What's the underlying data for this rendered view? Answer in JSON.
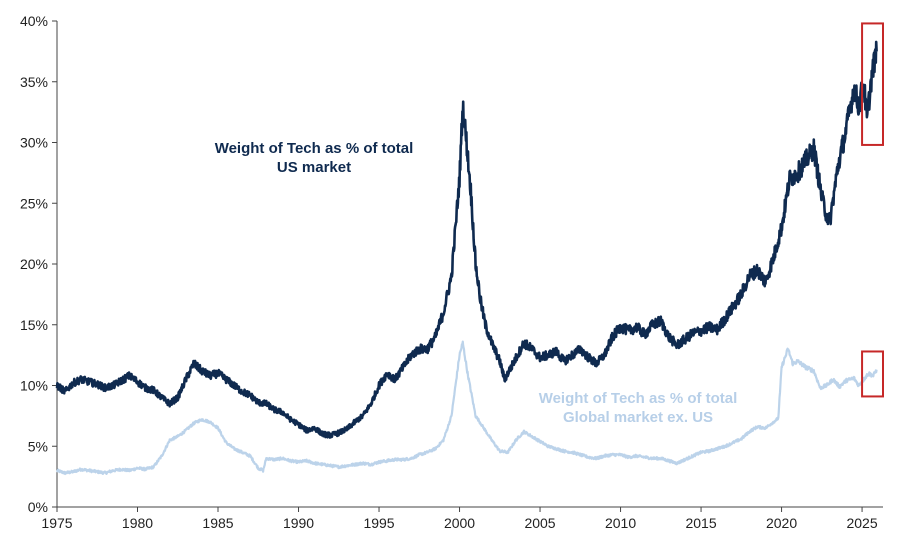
{
  "colors": {
    "us_series": "#0f2a4f",
    "global_series": "#bcd3ea",
    "us_label": "#0f2a4f",
    "global_label": "#b7cfe8",
    "highlight_box": "#c62828",
    "axis": "#444444"
  },
  "chart_data": {
    "type": "line",
    "title": "",
    "xlabel": "",
    "ylabel": "",
    "xlim": [
      1975,
      2026.3
    ],
    "ylim": [
      0,
      40
    ],
    "x_ticks": [
      "1975",
      "1980",
      "1985",
      "1990",
      "1995",
      "2000",
      "2005",
      "2010",
      "2015",
      "2020",
      "2025"
    ],
    "y_ticks": [
      "0%",
      "5%",
      "10%",
      "15%",
      "20%",
      "25%",
      "30%",
      "35%",
      "40%"
    ],
    "grid": false,
    "legend": "none",
    "annotations": [
      {
        "id": "us",
        "lines": [
          "Weight of Tech as % of total",
          "US market"
        ]
      },
      {
        "id": "global",
        "lines": [
          "Weight of Tech as % of total",
          "Global market ex. US"
        ]
      }
    ],
    "highlights": [
      {
        "series": "us",
        "x": [
          2025.0,
          2026.3
        ],
        "y": [
          29.8,
          39.8
        ]
      },
      {
        "series": "global",
        "x": [
          2025.0,
          2026.3
        ],
        "y": [
          9.1,
          12.8
        ]
      }
    ],
    "series": [
      {
        "id": "us",
        "name": "Weight of Tech as % of total US market",
        "points": [
          [
            1975.0,
            10.0
          ],
          [
            1975.5,
            9.5
          ],
          [
            1976.0,
            10.2
          ],
          [
            1976.5,
            10.5
          ],
          [
            1977.0,
            10.3
          ],
          [
            1977.5,
            10.1
          ],
          [
            1978.0,
            9.8
          ],
          [
            1978.5,
            10.0
          ],
          [
            1979.0,
            10.4
          ],
          [
            1979.5,
            10.8
          ],
          [
            1980.0,
            10.3
          ],
          [
            1980.5,
            9.8
          ],
          [
            1981.0,
            9.6
          ],
          [
            1981.5,
            9.0
          ],
          [
            1982.0,
            8.5
          ],
          [
            1982.5,
            9.0
          ],
          [
            1983.0,
            10.5
          ],
          [
            1983.5,
            11.8
          ],
          [
            1984.0,
            11.2
          ],
          [
            1984.5,
            10.8
          ],
          [
            1985.0,
            11.0
          ],
          [
            1985.5,
            10.5
          ],
          [
            1986.0,
            10.0
          ],
          [
            1986.5,
            9.5
          ],
          [
            1987.0,
            9.2
          ],
          [
            1987.5,
            8.6
          ],
          [
            1988.0,
            8.5
          ],
          [
            1988.5,
            8.0
          ],
          [
            1989.0,
            7.8
          ],
          [
            1989.5,
            7.2
          ],
          [
            1990.0,
            6.8
          ],
          [
            1990.5,
            6.3
          ],
          [
            1991.0,
            6.5
          ],
          [
            1991.5,
            6.0
          ],
          [
            1992.0,
            5.9
          ],
          [
            1992.5,
            6.1
          ],
          [
            1993.0,
            6.4
          ],
          [
            1993.5,
            7.0
          ],
          [
            1994.0,
            7.5
          ],
          [
            1994.5,
            8.5
          ],
          [
            1995.0,
            10.0
          ],
          [
            1995.5,
            11.0
          ],
          [
            1996.0,
            10.5
          ],
          [
            1996.5,
            11.5
          ],
          [
            1997.0,
            12.5
          ],
          [
            1997.5,
            13.0
          ],
          [
            1998.0,
            13.0
          ],
          [
            1998.5,
            14.0
          ],
          [
            1999.0,
            16.0
          ],
          [
            1999.5,
            19.0
          ],
          [
            2000.0,
            27.0
          ],
          [
            2000.2,
            33.0
          ],
          [
            2000.4,
            30.5
          ],
          [
            2000.7,
            26.0
          ],
          [
            2001.0,
            20.0
          ],
          [
            2001.3,
            17.0
          ],
          [
            2001.6,
            15.0
          ],
          [
            2002.0,
            13.5
          ],
          [
            2002.5,
            12.0
          ],
          [
            2002.8,
            10.5
          ],
          [
            2003.2,
            11.5
          ],
          [
            2003.6,
            12.5
          ],
          [
            2004.0,
            13.5
          ],
          [
            2004.5,
            13.0
          ],
          [
            2005.0,
            12.3
          ],
          [
            2005.5,
            12.5
          ],
          [
            2006.0,
            12.8
          ],
          [
            2006.5,
            12.0
          ],
          [
            2007.0,
            12.5
          ],
          [
            2007.5,
            13.0
          ],
          [
            2008.0,
            12.3
          ],
          [
            2008.5,
            11.8
          ],
          [
            2009.0,
            12.5
          ],
          [
            2009.5,
            14.0
          ],
          [
            2010.0,
            14.8
          ],
          [
            2010.5,
            14.5
          ],
          [
            2011.0,
            14.8
          ],
          [
            2011.5,
            14.2
          ],
          [
            2012.0,
            15.0
          ],
          [
            2012.5,
            15.3
          ],
          [
            2013.0,
            14.0
          ],
          [
            2013.5,
            13.3
          ],
          [
            2014.0,
            13.8
          ],
          [
            2014.5,
            14.3
          ],
          [
            2015.0,
            14.5
          ],
          [
            2015.5,
            14.8
          ],
          [
            2016.0,
            14.6
          ],
          [
            2016.5,
            15.5
          ],
          [
            2017.0,
            16.5
          ],
          [
            2017.5,
            17.5
          ],
          [
            2018.0,
            19.0
          ],
          [
            2018.5,
            19.5
          ],
          [
            2019.0,
            18.5
          ],
          [
            2019.5,
            20.5
          ],
          [
            2020.0,
            23.0
          ],
          [
            2020.5,
            27.0
          ],
          [
            2021.0,
            27.5
          ],
          [
            2021.5,
            28.5
          ],
          [
            2022.0,
            29.5
          ],
          [
            2022.5,
            25.5
          ],
          [
            2022.8,
            24.0
          ],
          [
            2023.0,
            23.5
          ],
          [
            2023.5,
            28.0
          ],
          [
            2024.0,
            31.0
          ],
          [
            2024.5,
            34.5
          ],
          [
            2024.8,
            33.0
          ],
          [
            2025.1,
            35.0
          ],
          [
            2025.3,
            31.8
          ],
          [
            2025.6,
            35.5
          ],
          [
            2025.9,
            37.5
          ]
        ]
      },
      {
        "id": "global",
        "name": "Weight of Tech as % of total Global market ex. US",
        "points": [
          [
            1975.0,
            3.0
          ],
          [
            1975.5,
            2.8
          ],
          [
            1976.0,
            2.9
          ],
          [
            1976.5,
            3.1
          ],
          [
            1977.0,
            3.0
          ],
          [
            1977.5,
            2.9
          ],
          [
            1978.0,
            2.8
          ],
          [
            1978.5,
            3.0
          ],
          [
            1979.0,
            3.1
          ],
          [
            1979.5,
            3.0
          ],
          [
            1980.0,
            3.2
          ],
          [
            1980.5,
            3.1
          ],
          [
            1981.0,
            3.3
          ],
          [
            1981.5,
            4.2
          ],
          [
            1982.0,
            5.5
          ],
          [
            1982.5,
            5.8
          ],
          [
            1983.0,
            6.3
          ],
          [
            1983.5,
            6.9
          ],
          [
            1984.0,
            7.2
          ],
          [
            1984.5,
            7.0
          ],
          [
            1985.0,
            6.5
          ],
          [
            1985.5,
            5.3
          ],
          [
            1986.0,
            4.8
          ],
          [
            1986.5,
            4.5
          ],
          [
            1987.0,
            4.2
          ],
          [
            1987.5,
            3.2
          ],
          [
            1987.8,
            3.0
          ],
          [
            1988.0,
            4.0
          ],
          [
            1988.5,
            3.9
          ],
          [
            1989.0,
            4.0
          ],
          [
            1989.5,
            3.8
          ],
          [
            1990.0,
            3.7
          ],
          [
            1990.5,
            3.8
          ],
          [
            1991.0,
            3.6
          ],
          [
            1991.5,
            3.5
          ],
          [
            1992.0,
            3.4
          ],
          [
            1992.5,
            3.3
          ],
          [
            1993.0,
            3.4
          ],
          [
            1993.5,
            3.5
          ],
          [
            1994.0,
            3.6
          ],
          [
            1994.5,
            3.5
          ],
          [
            1995.0,
            3.7
          ],
          [
            1995.5,
            3.8
          ],
          [
            1996.0,
            3.9
          ],
          [
            1996.5,
            3.9
          ],
          [
            1997.0,
            4.0
          ],
          [
            1997.5,
            4.3
          ],
          [
            1998.0,
            4.5
          ],
          [
            1998.5,
            4.8
          ],
          [
            1999.0,
            5.5
          ],
          [
            1999.5,
            7.5
          ],
          [
            2000.0,
            12.5
          ],
          [
            2000.2,
            13.5
          ],
          [
            2000.5,
            11.0
          ],
          [
            2001.0,
            7.5
          ],
          [
            2001.5,
            6.5
          ],
          [
            2002.0,
            5.5
          ],
          [
            2002.5,
            4.6
          ],
          [
            2003.0,
            4.5
          ],
          [
            2003.5,
            5.5
          ],
          [
            2004.0,
            6.2
          ],
          [
            2004.5,
            5.8
          ],
          [
            2005.0,
            5.4
          ],
          [
            2005.5,
            5.0
          ],
          [
            2006.0,
            4.8
          ],
          [
            2006.5,
            4.6
          ],
          [
            2007.0,
            4.5
          ],
          [
            2007.5,
            4.3
          ],
          [
            2008.0,
            4.1
          ],
          [
            2008.5,
            4.0
          ],
          [
            2009.0,
            4.2
          ],
          [
            2009.5,
            4.3
          ],
          [
            2010.0,
            4.3
          ],
          [
            2010.5,
            4.1
          ],
          [
            2011.0,
            4.2
          ],
          [
            2011.5,
            4.1
          ],
          [
            2012.0,
            4.0
          ],
          [
            2012.5,
            4.0
          ],
          [
            2013.0,
            3.8
          ],
          [
            2013.5,
            3.6
          ],
          [
            2014.0,
            3.9
          ],
          [
            2014.5,
            4.2
          ],
          [
            2015.0,
            4.5
          ],
          [
            2015.5,
            4.6
          ],
          [
            2016.0,
            4.8
          ],
          [
            2016.5,
            5.0
          ],
          [
            2017.0,
            5.3
          ],
          [
            2017.5,
            5.6
          ],
          [
            2018.0,
            6.2
          ],
          [
            2018.5,
            6.6
          ],
          [
            2019.0,
            6.5
          ],
          [
            2019.5,
            7.0
          ],
          [
            2019.8,
            7.3
          ],
          [
            2020.0,
            11.5
          ],
          [
            2020.4,
            13.0
          ],
          [
            2020.7,
            11.8
          ],
          [
            2021.0,
            12.0
          ],
          [
            2021.5,
            11.5
          ],
          [
            2022.0,
            11.2
          ],
          [
            2022.4,
            9.8
          ],
          [
            2022.8,
            10.0
          ],
          [
            2023.2,
            10.5
          ],
          [
            2023.6,
            9.9
          ],
          [
            2024.0,
            10.4
          ],
          [
            2024.5,
            10.6
          ],
          [
            2024.8,
            10.0
          ],
          [
            2025.1,
            10.5
          ],
          [
            2025.4,
            11.0
          ],
          [
            2025.7,
            10.8
          ],
          [
            2025.9,
            11.3
          ]
        ]
      }
    ]
  }
}
